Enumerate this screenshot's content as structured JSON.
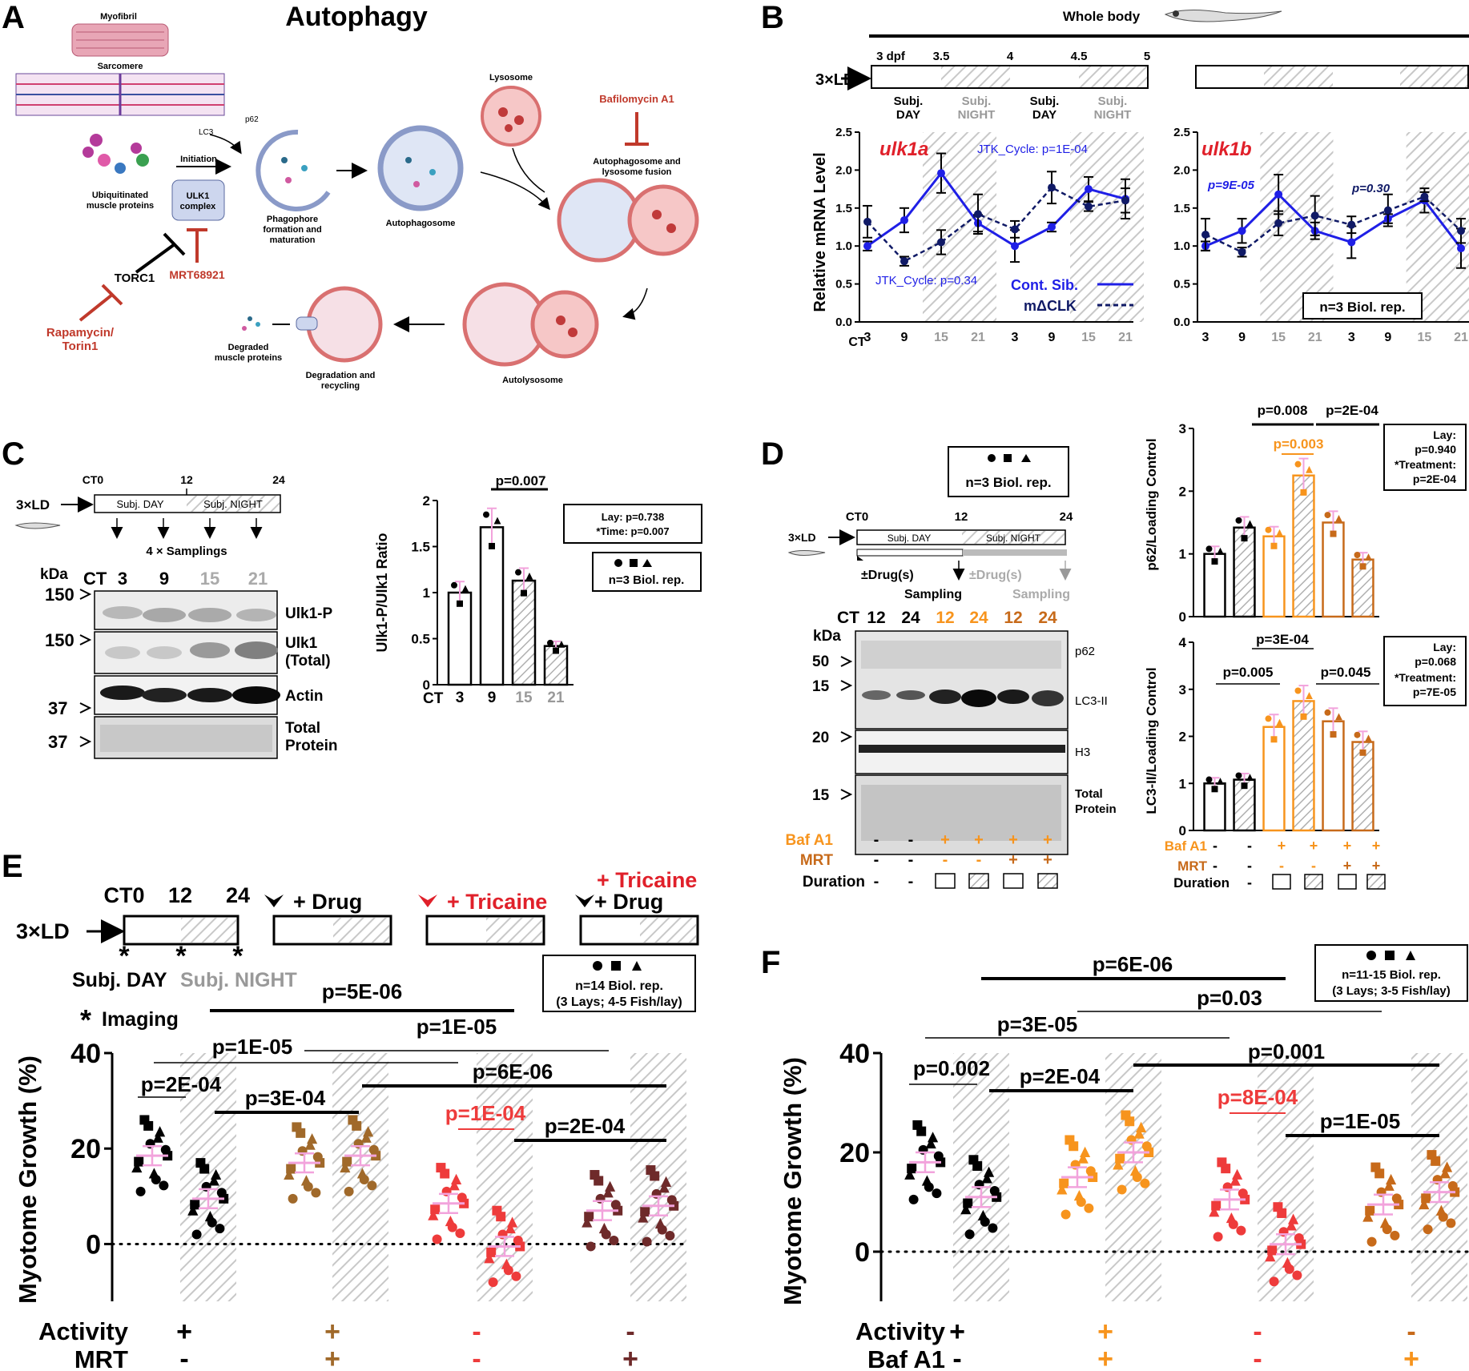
{
  "panels": {
    "a": "A",
    "b": "B",
    "c": "C",
    "d": "D",
    "e": "E",
    "f": "F"
  },
  "colors": {
    "ctrl": "#000000",
    "mrt": "#a0692a",
    "tric": "#ee3b3b",
    "tricmrt": "#6e2a2a",
    "baf": "#f7941d",
    "bafmrt": "#c76a1a",
    "pink": "#f2a3dc",
    "blue": "#1f1fe6",
    "navy": "#101a66",
    "red": "#e0202a",
    "grey": "#999999"
  },
  "panelA": {
    "title": "Autophagy",
    "myofibril": "Myofibril",
    "sarcomere": "Sarcomere",
    "lc3": "LC3",
    "p62": "p62",
    "ubiq": "Ubiquitinated muscle proteins",
    "initiation": "Initiation",
    "ulk1": "ULK1 complex",
    "torc1": "TORC1",
    "mrt": "MRT68921",
    "rapa": "Rapamycin/ Torin1",
    "phago": "Phagophore formation and maturation",
    "autophagosome": "Autophagosome",
    "lysosome": "Lysosome",
    "baf": "Bafilomycin A1",
    "fusion": "Autophagosome and lysosome fusion",
    "autolysosome": "Autolysosome",
    "degrad": "Degradation and recycling",
    "degraded": "Degraded muscle proteins"
  },
  "panelB": {
    "whole_body": "Whole body",
    "ld": "3×LD",
    "days": [
      "3 dpf",
      "3.5",
      "4",
      "4.5",
      "5"
    ],
    "phases": [
      "Subj. DAY",
      "Subj. NIGHT",
      "Subj. DAY",
      "Subj. NIGHT"
    ],
    "ylabel": "Relative mRNA Level",
    "ct": "CT",
    "xticks": [
      "3",
      "9",
      "15",
      "21",
      "3",
      "9",
      "15",
      "21"
    ],
    "gene_a": "ulk1a",
    "gene_b": "ulk1b",
    "jtk_a1": "JTK_Cycle: p=1E-04",
    "jtk_a2": "JTK_Cycle: p=0.34",
    "p_b1": "p=9E-05",
    "p_b2": "p=0.30",
    "legend_cont": "Cont. Sib.",
    "legend_mclk": "mΔCLK",
    "nrep": "n=3 Biol. rep."
  },
  "panelC": {
    "ct0": "CT0",
    "t12": "12",
    "t24": "24",
    "day": "Subj. DAY",
    "night": "Subj. NIGHT",
    "ld": "3×LD",
    "samplings": "4 × Samplings",
    "kda": "kDa",
    "ct": "CT",
    "lanes": [
      "3",
      "9",
      "15",
      "21"
    ],
    "markers": [
      "150",
      "150",
      "37",
      "37"
    ],
    "bands": [
      "Ulk1-P",
      "Ulk1 (Total)",
      "Actin",
      "Total Protein"
    ],
    "ylabel": "Ulk1-P/Ulk1 Ratio",
    "pval": "p=0.007",
    "lay": "Lay: p=0.738",
    "time": "*Time: p=0.007",
    "nrep": "n=3 Biol. rep."
  },
  "panelD": {
    "nrep": "n=3 Biol. rep.",
    "ct0": "CT0",
    "t12": "12",
    "t24": "24",
    "day": "Subj. DAY",
    "night": "Subj. NIGHT",
    "ld": "3×LD",
    "drug": "±Drug(s)",
    "sampling": "Sampling",
    "kda": "kDa",
    "ct": "CT",
    "lanes": [
      "12",
      "24",
      "12",
      "24",
      "12",
      "24"
    ],
    "markers": [
      "50",
      "15",
      "20",
      "15"
    ],
    "bands": [
      "p62",
      "LC3-II",
      "H3",
      "Total Protein"
    ],
    "row_baf": "Baf A1",
    "row_mrt": "MRT",
    "row_dur": "Duration",
    "baf_vals": [
      "-",
      "-",
      "+",
      "+",
      "+",
      "+"
    ],
    "mrt_vals": [
      "-",
      "-",
      "-",
      "-",
      "+",
      "+"
    ],
    "p62_ylabel": "p62/Loading Control",
    "lc3_ylabel": "LC3-II/Loading Control",
    "p62_p1": "p=0.008",
    "p62_p2": "p=2E-04",
    "p62_p3": "p=0.003",
    "p62_stats": [
      "Lay:",
      "p=0.940",
      "*Treatment:",
      "p=2E-04"
    ],
    "lc3_p1": "p=3E-04",
    "lc3_p2": "p=0.005",
    "lc3_p3": "p=0.045",
    "lc3_stats": [
      "Lay:",
      "p=0.068",
      "*Treatment:",
      "p=7E-05"
    ]
  },
  "panelE": {
    "ct0": "CT0",
    "t12": "12",
    "t24": "24",
    "ld": "3×LD",
    "day": "Subj. DAY",
    "night": "Subj. NIGHT",
    "imaging": "Imaging",
    "drug": "+ Drug",
    "tricaine": "+ Tricaine",
    "tricaine2": "+ Tricaine",
    "drug2": "+ Drug",
    "nrep": "n=14 Biol. rep.",
    "nrep2": "(3 Lays; 4-5 Fish/lay)",
    "ylabel": "Myotome Growth (%)",
    "row1": "Activity",
    "row2": "MRT",
    "activity": [
      "+",
      "+",
      "-",
      "-"
    ],
    "mrt": [
      "-",
      "+",
      "-",
      "+"
    ],
    "p": [
      "p=5E-06",
      "p=1E-05",
      "p=1E-05",
      "p=2E-04",
      "p=3E-04",
      "p=6E-06",
      "p=1E-04",
      "p=2E-04"
    ]
  },
  "panelF": {
    "nrep": "n=11-15 Biol. rep.",
    "nrep2": "(3 Lays; 3-5 Fish/lay)",
    "ylabel": "Myotome Growth (%)",
    "row1": "Activity",
    "row2": "Baf A1",
    "activity": [
      "+",
      "+",
      "-",
      "-"
    ],
    "baf": [
      "-",
      "+",
      "-",
      "+"
    ],
    "p": [
      "p=6E-06",
      "p=0.03",
      "p=3E-05",
      "p=0.002",
      "p=2E-04",
      "p=0.001",
      "p=8E-04",
      "p=1E-05"
    ]
  },
  "chart_data": [
    {
      "type": "line",
      "title": "ulk1a",
      "ylabel": "Relative mRNA Level",
      "ylim": [
        0,
        2.5
      ],
      "x": [
        "3",
        "9",
        "15",
        "21",
        "3",
        "9",
        "15",
        "21"
      ],
      "series": [
        {
          "name": "Cont. Sib.",
          "values": [
            1.0,
            1.34,
            1.96,
            1.3,
            1.0,
            1.25,
            1.75,
            1.62
          ]
        },
        {
          "name": "mΔCLK",
          "values": [
            1.32,
            0.8,
            1.05,
            1.42,
            1.22,
            1.77,
            1.52,
            1.6
          ]
        }
      ]
    },
    {
      "type": "line",
      "title": "ulk1b",
      "ylim": [
        0,
        2.5
      ],
      "x": [
        "3",
        "9",
        "15",
        "21",
        "3",
        "9",
        "15",
        "21"
      ],
      "series": [
        {
          "name": "Cont. Sib.",
          "values": [
            1.0,
            1.2,
            1.68,
            1.2,
            1.05,
            1.36,
            1.6,
            0.97
          ]
        },
        {
          "name": "mΔCLK",
          "values": [
            1.15,
            0.92,
            1.3,
            1.4,
            1.28,
            1.47,
            1.65,
            1.2
          ]
        }
      ]
    },
    {
      "type": "bar",
      "ylabel": "Ulk1-P/Ulk1 Ratio",
      "ylim": [
        0,
        2.0
      ],
      "categories": [
        "3",
        "9",
        "15",
        "21"
      ],
      "values": [
        1.0,
        1.71,
        1.13,
        0.42
      ]
    },
    {
      "type": "bar",
      "ylabel": "p62/Loading Control",
      "ylim": [
        0,
        3
      ],
      "categories": [
        "12",
        "24",
        "12",
        "24",
        "12",
        "24"
      ],
      "values": [
        1.0,
        1.42,
        1.28,
        2.25,
        1.5,
        0.91
      ]
    },
    {
      "type": "bar",
      "ylabel": "LC3-II/Loading Control",
      "ylim": [
        0,
        4
      ],
      "categories": [
        "12",
        "24",
        "12",
        "24",
        "12",
        "24"
      ],
      "values": [
        1.0,
        1.08,
        2.2,
        2.75,
        2.32,
        1.88
      ]
    },
    {
      "type": "scatter",
      "ylabel": "Myotome Growth (%)",
      "ylim": [
        -12,
        40
      ],
      "categories": [
        "Ctrl D",
        "Ctrl N",
        "MRT D",
        "MRT N",
        "Tric D",
        "Tric N",
        "TricMRT D",
        "TricMRT N"
      ],
      "means": [
        18.5,
        9.5,
        17,
        18.5,
        8.5,
        -0.5,
        7,
        8
      ]
    },
    {
      "type": "scatter",
      "ylabel": "Myotome Growth (%)",
      "ylim": [
        -10,
        40
      ],
      "categories": [
        "Ctrl D",
        "Ctrl N",
        "Baf D",
        "Baf N",
        "Tric D",
        "Tric N",
        "TricBaf D",
        "TricBaf N"
      ],
      "means": [
        18,
        11,
        15,
        20,
        10.5,
        1.5,
        9.5,
        12
      ]
    }
  ]
}
